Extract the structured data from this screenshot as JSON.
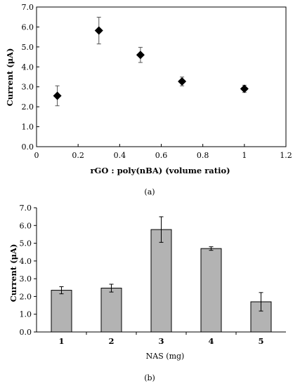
{
  "chart_data": [
    {
      "type": "scatter",
      "panel_label": "(a)",
      "xlabel": "rGO : poly(nBA) (volume ratio)",
      "ylabel": "Current (μA)",
      "xlim": [
        0,
        1.2
      ],
      "ylim": [
        0,
        7.0
      ],
      "xticks": [
        "0",
        "0.2",
        "0.4",
        "0.6",
        "0.8",
        "1",
        "1.2"
      ],
      "yticks": [
        "0.0",
        "1.0",
        "2.0",
        "3.0",
        "4.0",
        "5.0",
        "6.0",
        "7.0"
      ],
      "marker": "diamond",
      "points": [
        {
          "x": 0.1,
          "y": 2.55,
          "err": 0.5
        },
        {
          "x": 0.3,
          "y": 5.82,
          "err": 0.67
        },
        {
          "x": 0.5,
          "y": 4.6,
          "err": 0.38
        },
        {
          "x": 0.7,
          "y": 3.27,
          "err": 0.22
        },
        {
          "x": 1.0,
          "y": 2.9,
          "err": 0.18
        }
      ],
      "grid": false
    },
    {
      "type": "bar",
      "panel_label": "(b)",
      "xlabel": "NAS (mg)",
      "ylabel": "Current (μA)",
      "ylim": [
        0,
        7.0
      ],
      "categories": [
        "1",
        "2",
        "3",
        "4",
        "5"
      ],
      "values": [
        2.35,
        2.47,
        5.77,
        4.7,
        1.7
      ],
      "errors": [
        0.2,
        0.22,
        0.72,
        0.1,
        0.52
      ],
      "yticks": [
        "0.0",
        "1.0",
        "2.0",
        "3.0",
        "4.0",
        "5.0",
        "6.0",
        "7.0"
      ],
      "bar_color": "#b3b3b3",
      "grid": false
    }
  ]
}
